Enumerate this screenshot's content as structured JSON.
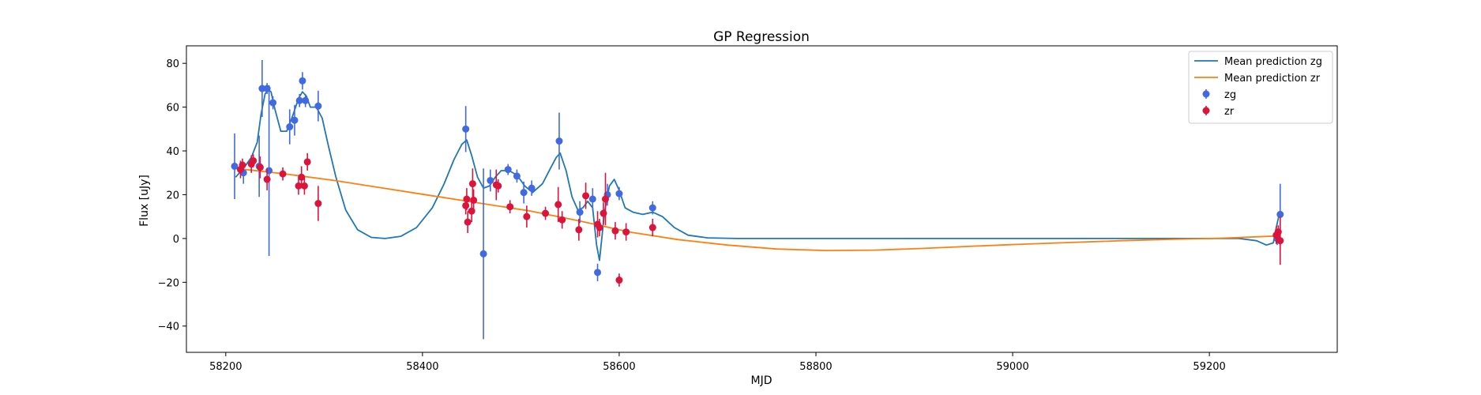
{
  "chart_data": {
    "type": "scatter",
    "title": "GP Regression",
    "xlabel": "MJD",
    "ylabel": "Flux [uJy]",
    "xlim": [
      58160,
      59330
    ],
    "ylim": [
      -52,
      88
    ],
    "xticks": [
      58200,
      58400,
      58600,
      58800,
      59000,
      59200
    ],
    "yticks": [
      -40,
      -20,
      0,
      20,
      40,
      60,
      80
    ],
    "legend_position": "top-right",
    "grid": false,
    "legend": [
      {
        "label": "Mean prediction zg",
        "kind": "line",
        "color": "#1f77b4"
      },
      {
        "label": "Mean prediction zr",
        "kind": "line",
        "color": "#ff7f0e"
      },
      {
        "label": "zg",
        "kind": "errorbar",
        "color": "#4169e1"
      },
      {
        "label": "zr",
        "kind": "errorbar",
        "color": "#dc143c"
      }
    ],
    "lines": [
      {
        "name": "Mean prediction zg",
        "color": "#1f77b4",
        "x": [
          58210,
          58218,
          58226,
          58232,
          58236,
          58240,
          58243,
          58246,
          58250,
          58256,
          58262,
          58268,
          58274,
          58278,
          58282,
          58286,
          58292,
          58298,
          58304,
          58312,
          58322,
          58334,
          58348,
          58362,
          58378,
          58394,
          58410,
          58422,
          58432,
          58440,
          58445,
          58450,
          58456,
          58462,
          58468,
          58474,
          58480,
          58488,
          58496,
          58504,
          58512,
          58522,
          58530,
          58536,
          58540,
          58546,
          58552,
          58558,
          58563,
          58568,
          58573,
          58577,
          58580,
          58585,
          58590,
          58595,
          58600,
          58606,
          58614,
          58624,
          58634,
          58644,
          58656,
          58670,
          58690,
          58720,
          58760,
          58800,
          58900,
          59000,
          59100,
          59200,
          59230,
          59248,
          59258,
          59265,
          59268,
          59271
        ],
        "y": [
          28,
          32,
          37,
          44,
          57,
          66,
          68,
          67,
          59,
          49,
          49,
          56,
          64,
          67,
          65,
          60,
          60,
          55,
          43,
          28,
          13,
          4,
          0.5,
          0,
          1,
          5,
          14,
          25,
          36,
          43,
          45,
          38,
          28,
          23,
          24,
          28,
          31,
          31,
          29,
          24,
          21,
          25,
          32,
          37,
          39,
          31,
          19,
          13,
          14,
          17,
          14,
          -3,
          -10,
          12,
          24,
          27,
          22,
          14,
          12,
          11,
          12,
          10,
          5,
          1.5,
          0.3,
          0,
          0,
          0,
          0,
          0,
          0,
          0,
          0,
          -1,
          -3,
          -2,
          5,
          11
        ]
      },
      {
        "name": "Mean prediction zr",
        "color": "#ff7f0e",
        "x": [
          58210,
          58260,
          58310,
          58360,
          58410,
          58460,
          58510,
          58560,
          58610,
          58660,
          58710,
          58760,
          58810,
          58860,
          58910,
          58960,
          59010,
          59060,
          59110,
          59160,
          59210,
          59240,
          59270
        ],
        "y": [
          32,
          29.5,
          26.5,
          23,
          19.5,
          16,
          12.5,
          8,
          3,
          -0.5,
          -3,
          -4.8,
          -5.5,
          -5.3,
          -4.5,
          -3.5,
          -2.6,
          -1.8,
          -1,
          -0.4,
          0.1,
          0.6,
          1.2
        ]
      }
    ],
    "series": [
      {
        "name": "zg",
        "color": "#4169e1",
        "points": [
          {
            "x": 58209,
            "y": 33,
            "err": 15
          },
          {
            "x": 58218,
            "y": 30,
            "err": 5
          },
          {
            "x": 58234,
            "y": 33,
            "err": 14
          },
          {
            "x": 58237,
            "y": 68.5,
            "err": 13
          },
          {
            "x": 58242,
            "y": 68.5,
            "err": 2.5
          },
          {
            "x": 58244,
            "y": 31,
            "err": 39
          },
          {
            "x": 58248,
            "y": 62,
            "err": 3
          },
          {
            "x": 58265,
            "y": 51,
            "err": 8
          },
          {
            "x": 58270,
            "y": 54,
            "err": 7
          },
          {
            "x": 58275,
            "y": 63,
            "err": 3
          },
          {
            "x": 58278,
            "y": 72,
            "err": 4
          },
          {
            "x": 58281,
            "y": 63,
            "err": 3
          },
          {
            "x": 58294,
            "y": 60.5,
            "err": 7
          },
          {
            "x": 58444,
            "y": 50,
            "err": 10.5
          },
          {
            "x": 58462,
            "y": -7,
            "err": 39
          },
          {
            "x": 58469,
            "y": 26.5,
            "err": 5
          },
          {
            "x": 58487,
            "y": 31.5,
            "err": 2.5
          },
          {
            "x": 58496,
            "y": 28.5,
            "err": 3
          },
          {
            "x": 58503,
            "y": 21,
            "err": 5
          },
          {
            "x": 58511,
            "y": 23,
            "err": 3.5
          },
          {
            "x": 58539,
            "y": 44.5,
            "err": 13
          },
          {
            "x": 58560,
            "y": 12,
            "err": 5
          },
          {
            "x": 58573,
            "y": 18,
            "err": 5
          },
          {
            "x": 58578,
            "y": -15.5,
            "err": 4
          },
          {
            "x": 58588,
            "y": 20,
            "err": 5
          },
          {
            "x": 58600,
            "y": 20.5,
            "err": 3
          },
          {
            "x": 58634,
            "y": 14,
            "err": 3
          },
          {
            "x": 59269,
            "y": 0,
            "err": 3
          },
          {
            "x": 59272,
            "y": 11,
            "err": 14
          }
        ]
      },
      {
        "name": "zr",
        "color": "#dc143c",
        "points": [
          {
            "x": 58215,
            "y": 31.5,
            "err": 4
          },
          {
            "x": 58217,
            "y": 33.5,
            "err": 3
          },
          {
            "x": 58226,
            "y": 34,
            "err": 4
          },
          {
            "x": 58228,
            "y": 35.5,
            "err": 3
          },
          {
            "x": 58235,
            "y": 32.5,
            "err": 5
          },
          {
            "x": 58242,
            "y": 27,
            "err": 5
          },
          {
            "x": 58258,
            "y": 29.5,
            "err": 3
          },
          {
            "x": 58274,
            "y": 24,
            "err": 4
          },
          {
            "x": 58277,
            "y": 28,
            "err": 5
          },
          {
            "x": 58280,
            "y": 24,
            "err": 4
          },
          {
            "x": 58283,
            "y": 35,
            "err": 4
          },
          {
            "x": 58294,
            "y": 16,
            "err": 8
          },
          {
            "x": 58444,
            "y": 15,
            "err": 4
          },
          {
            "x": 58445,
            "y": 18,
            "err": 5
          },
          {
            "x": 58446,
            "y": 7.5,
            "err": 5
          },
          {
            "x": 58450,
            "y": 12.5,
            "err": 5
          },
          {
            "x": 58451,
            "y": 25,
            "err": 7
          },
          {
            "x": 58452,
            "y": 17.5,
            "err": 5
          },
          {
            "x": 58475,
            "y": 24.5,
            "err": 7
          },
          {
            "x": 58477,
            "y": 24,
            "err": 3
          },
          {
            "x": 58489,
            "y": 14.5,
            "err": 3
          },
          {
            "x": 58506,
            "y": 10,
            "err": 5
          },
          {
            "x": 58525,
            "y": 11.5,
            "err": 3
          },
          {
            "x": 58538,
            "y": 15.5,
            "err": 8
          },
          {
            "x": 58542,
            "y": 8.5,
            "err": 4
          },
          {
            "x": 58559,
            "y": 4,
            "err": 5
          },
          {
            "x": 58566,
            "y": 19.5,
            "err": 6
          },
          {
            "x": 58578,
            "y": 6.5,
            "err": 6
          },
          {
            "x": 58580,
            "y": 5,
            "err": 4
          },
          {
            "x": 58584,
            "y": 11.5,
            "err": 5
          },
          {
            "x": 58586,
            "y": 18,
            "err": 12
          },
          {
            "x": 58596,
            "y": 3.5,
            "err": 4
          },
          {
            "x": 58600,
            "y": -19,
            "err": 3
          },
          {
            "x": 58607,
            "y": 3,
            "err": 4
          },
          {
            "x": 58634,
            "y": 5,
            "err": 4
          },
          {
            "x": 59268,
            "y": 1.5,
            "err": 4
          },
          {
            "x": 59270,
            "y": 3,
            "err": 3
          },
          {
            "x": 59272,
            "y": -1,
            "err": 11
          }
        ]
      }
    ]
  }
}
